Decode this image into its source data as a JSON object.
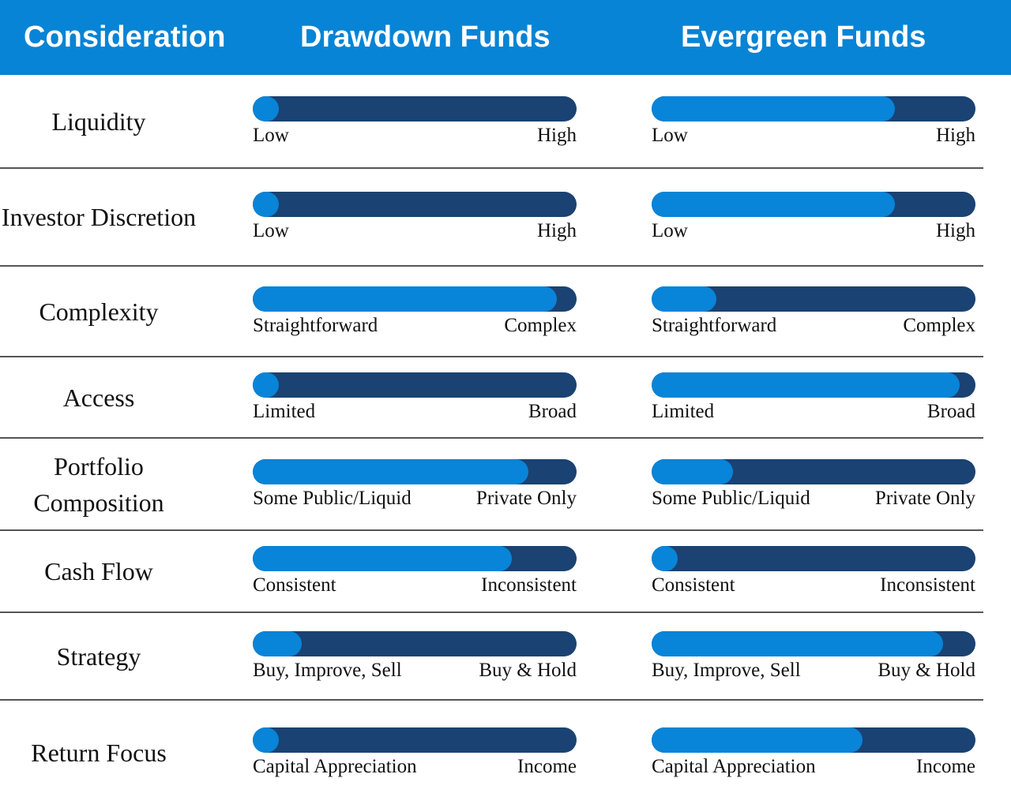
{
  "header": {
    "col1": "Consideration",
    "col2": "Drawdown Funds",
    "col3": "Evergreen Funds"
  },
  "colors": {
    "header": "#0784d6",
    "bar_track": "#1a4272",
    "bar_fill": "#0884d8"
  },
  "rows": [
    {
      "label": "Liquidity",
      "low": "Low",
      "high": "High",
      "drawdown": 0.08,
      "evergreen": 0.75
    },
    {
      "label": "Investor Discretion",
      "low": "Low",
      "high": "High",
      "drawdown": 0.08,
      "evergreen": 0.75
    },
    {
      "label": "Complexity",
      "low": "Straightforward",
      "high": "Complex",
      "drawdown": 0.94,
      "evergreen": 0.2
    },
    {
      "label": "Access",
      "low": "Limited",
      "high": "Broad",
      "drawdown": 0.08,
      "evergreen": 0.95
    },
    {
      "label": "Portfolio Composition",
      "low": "Some Public/Liquid",
      "high": "Private Only",
      "drawdown": 0.85,
      "evergreen": 0.25
    },
    {
      "label": "Cash Flow",
      "low": "Consistent",
      "high": "Inconsistent",
      "drawdown": 0.8,
      "evergreen": 0.08
    },
    {
      "label": "Strategy",
      "low": "Buy, Improve, Sell",
      "high": "Buy & Hold",
      "drawdown": 0.15,
      "evergreen": 0.9
    },
    {
      "label": "Return Focus",
      "low": "Capital Appreciation",
      "high": "Income",
      "drawdown": 0.08,
      "evergreen": 0.65
    }
  ]
}
